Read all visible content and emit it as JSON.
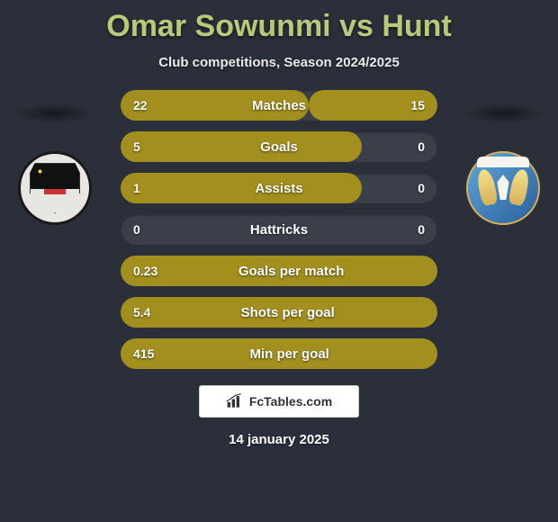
{
  "title": "Omar Sowunmi vs Hunt",
  "subtitle": "Club competitions, Season 2024/2025",
  "date": "14 january 2025",
  "footer_label": "FcTables.com",
  "colors": {
    "fill": "#a28f1e",
    "track": "#3a3f4a",
    "title": "#b8c97a"
  },
  "rows": [
    {
      "label": "Matches",
      "left": "22",
      "right": "15",
      "left_pct": 59.5,
      "right_pct": 40.5
    },
    {
      "label": "Goals",
      "left": "5",
      "right": "0",
      "left_pct": 76,
      "right_pct": 0
    },
    {
      "label": "Assists",
      "left": "1",
      "right": "0",
      "left_pct": 76,
      "right_pct": 0
    },
    {
      "label": "Hattricks",
      "left": "0",
      "right": "0",
      "left_pct": 0,
      "right_pct": 0
    },
    {
      "label": "Goals per match",
      "left": "0.23",
      "right": "",
      "left_pct": 100,
      "right_pct": 0
    },
    {
      "label": "Shots per goal",
      "left": "5.4",
      "right": "",
      "left_pct": 100,
      "right_pct": 0
    },
    {
      "label": "Min per goal",
      "left": "415",
      "right": "",
      "left_pct": 100,
      "right_pct": 0
    }
  ]
}
